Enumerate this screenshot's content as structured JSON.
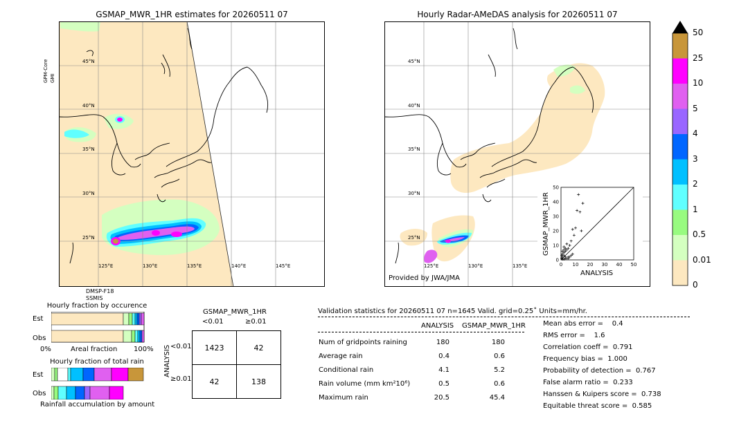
{
  "left_map": {
    "title": "GSMAP_MWR_1HR estimates for 20260511 07",
    "side_label_top": "GPM-Core",
    "side_label_bottom": "GMI",
    "bottom_label_1": "DMSP-F18",
    "bottom_label_2": "SSMIS",
    "lat_labels": [
      "45°N",
      "40°N",
      "35°N",
      "30°N",
      "25°N"
    ],
    "lon_labels": [
      "125°E",
      "130°E",
      "135°E",
      "140°E",
      "145°E"
    ]
  },
  "right_map": {
    "title": "Hourly Radar-AMeDAS analysis for 20260511 07",
    "credit": "Provided by JWA/JMA",
    "lat_labels": [
      "45°N",
      "40°N",
      "35°N",
      "30°N",
      "25°N"
    ],
    "lon_labels": [
      "125°E",
      "130°E",
      "135°E"
    ]
  },
  "colorbar": {
    "labels": [
      "50",
      "25",
      "10",
      "5",
      "4",
      "3",
      "2",
      "1",
      "0.5",
      "0.01",
      "0"
    ],
    "colors": [
      "#c8963a",
      "#ff00ff",
      "#e060f0",
      "#9966ff",
      "#0066ff",
      "#00c0ff",
      "#60ffff",
      "#98fb80",
      "#d4ffc0",
      "#fde8c0"
    ]
  },
  "scatter": {
    "ylabel": "GSMAP_MWR_1HR",
    "xlabel": "ANALYSIS",
    "ticks": [
      "0",
      "10",
      "20",
      "30",
      "40",
      "50"
    ]
  },
  "fraction_occurrence": {
    "title": "Hourly fraction by occurence",
    "rows": [
      "Est",
      "Obs"
    ],
    "axis_left": "0%",
    "axis_mid": "Areal fraction",
    "axis_right": "100%"
  },
  "fraction_total": {
    "title": "Hourly fraction of total rain",
    "rows": [
      "Est",
      "Obs"
    ],
    "footer": "Rainfall accumulation by amount"
  },
  "contingency": {
    "title": "GSMAP_MWR_1HR",
    "col_lt": "<0.01",
    "col_ge": "≥0.01",
    "side_label": "ANALYSIS",
    "row_lt": "<0.01",
    "row_ge": "≥0.01",
    "cells": [
      [
        "1423",
        "42"
      ],
      [
        "42",
        "138"
      ]
    ]
  },
  "validation": {
    "header": "Validation statistics for 20260511 07  n=1645 Valid. grid=0.25˚ Units=mm/hr.",
    "col_analysis": "ANALYSIS",
    "col_gsmap": "GSMAP_MWR_1HR",
    "rows": [
      {
        "label": "Num of gridpoints raining",
        "analysis": "180",
        "gsmap": "180"
      },
      {
        "label": "Average rain",
        "analysis": "0.4",
        "gsmap": "0.6"
      },
      {
        "label": "Conditional rain",
        "analysis": "4.1",
        "gsmap": "5.2"
      },
      {
        "label": "Rain volume (mm km²10⁶)",
        "analysis": "0.5",
        "gsmap": "0.6"
      },
      {
        "label": "Maximum rain",
        "analysis": "20.5",
        "gsmap": "45.4"
      }
    ],
    "scores": [
      "Mean abs error =    0.4",
      "RMS error =    1.6",
      "Correlation coeff =  0.791",
      "Frequency bias =  1.000",
      "Probability of detection =  0.767",
      "False alarm ratio =  0.233",
      "Hanssen & Kuipers score =  0.738",
      "Equitable threat score =  0.585"
    ]
  },
  "chart_data": {
    "type": "scatter",
    "xlabel": "ANALYSIS",
    "ylabel": "GSMAP_MWR_1HR",
    "xlim": [
      0,
      50
    ],
    "ylim": [
      0,
      50
    ],
    "x": [
      12,
      15,
      11,
      13,
      14,
      10,
      8,
      9,
      7,
      6,
      5,
      4,
      3,
      2,
      1,
      1,
      2,
      3,
      4,
      5,
      6,
      7,
      8,
      3,
      2,
      1,
      0.5,
      0.5,
      1,
      2,
      3,
      2,
      4,
      5
    ],
    "y": [
      45,
      39,
      34,
      33,
      20,
      22,
      21,
      17,
      13,
      10,
      8,
      7,
      6,
      5,
      4,
      2,
      3,
      2,
      1,
      1,
      2,
      3,
      4,
      8,
      7,
      6,
      3,
      1,
      0.5,
      0.5,
      1,
      9,
      11,
      2
    ]
  }
}
